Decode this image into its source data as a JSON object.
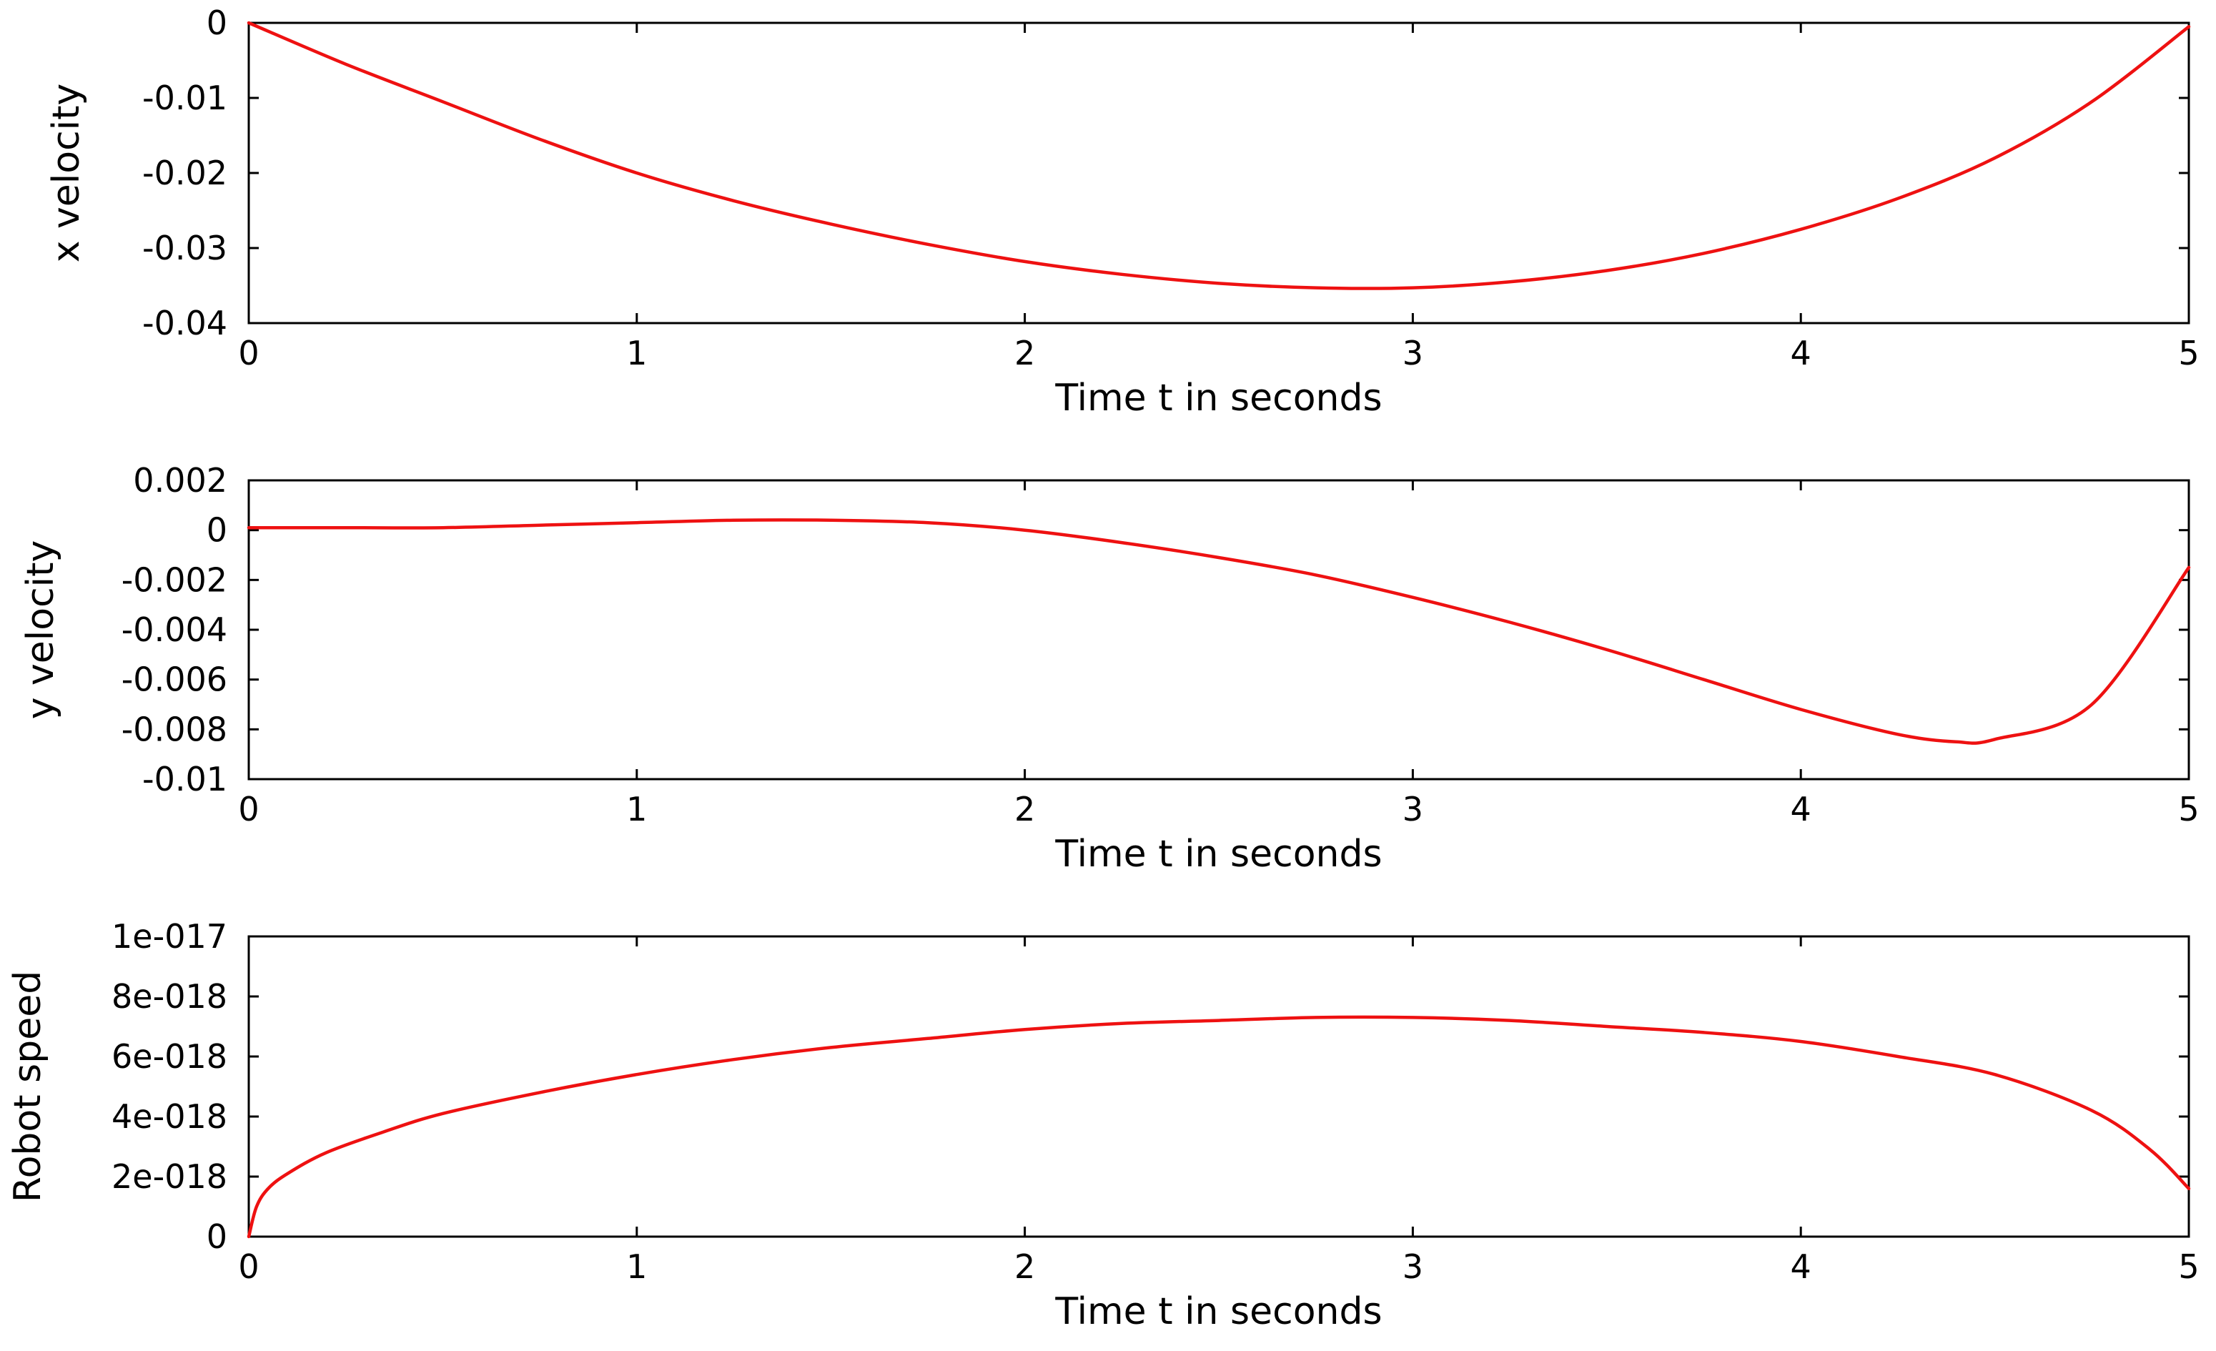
{
  "chart_data": [
    {
      "type": "line",
      "xlabel": "Time t in seconds",
      "ylabel": "x velocity",
      "xlim": [
        0,
        5
      ],
      "ylim": [
        -0.04,
        0
      ],
      "x_ticks": [
        0,
        1,
        2,
        3,
        4,
        5
      ],
      "x_tick_labels": [
        "0",
        "1",
        "2",
        "3",
        "4",
        "5"
      ],
      "y_ticks": [
        0,
        -0.01,
        -0.02,
        -0.03,
        -0.04
      ],
      "y_tick_labels": [
        "0",
        "-0.01",
        "-0.02",
        "-0.03",
        "-0.04"
      ],
      "grid": false,
      "series": [
        {
          "color": "#ee1111",
          "x": [
            0,
            0.25,
            0.5,
            0.75,
            1.0,
            1.25,
            1.5,
            1.75,
            2.0,
            2.25,
            2.5,
            2.75,
            3.0,
            3.25,
            3.5,
            3.75,
            4.0,
            4.25,
            4.5,
            4.75,
            5.0
          ],
          "y": [
            0,
            -0.0055,
            -0.0105,
            -0.0155,
            -0.02,
            -0.0237,
            -0.0268,
            -0.0295,
            -0.0318,
            -0.0335,
            -0.0347,
            -0.0353,
            -0.0353,
            -0.0345,
            -0.033,
            -0.0307,
            -0.0275,
            -0.0234,
            -0.018,
            -0.0105,
            -0.0005
          ]
        }
      ]
    },
    {
      "type": "line",
      "xlabel": "Time t in seconds",
      "ylabel": "y velocity",
      "xlim": [
        0,
        5
      ],
      "ylim": [
        -0.01,
        0.002
      ],
      "x_ticks": [
        0,
        1,
        2,
        3,
        4,
        5
      ],
      "x_tick_labels": [
        "0",
        "1",
        "2",
        "3",
        "4",
        "5"
      ],
      "y_ticks": [
        0.002,
        0,
        -0.002,
        -0.004,
        -0.006,
        -0.008,
        -0.01
      ],
      "y_tick_labels": [
        "0.002",
        "0",
        "-0.002",
        "-0.004",
        "-0.006",
        "-0.008",
        "-0.01"
      ],
      "grid": false,
      "series": [
        {
          "color": "#ee1111",
          "x": [
            0,
            0.25,
            0.5,
            0.75,
            1.0,
            1.25,
            1.5,
            1.75,
            2.0,
            2.25,
            2.5,
            2.75,
            3.0,
            3.25,
            3.5,
            3.75,
            4.0,
            4.25,
            4.4,
            4.5,
            4.75,
            5.0
          ],
          "y": [
            0.0001,
            0.0001,
            0.0001,
            0.0002,
            0.0003,
            0.0004,
            0.0004,
            0.0003,
            0.0,
            -0.0005,
            -0.0011,
            -0.0018,
            -0.0027,
            -0.0037,
            -0.0048,
            -0.006,
            -0.0072,
            -0.0082,
            -0.0085,
            -0.0084,
            -0.007,
            -0.0015
          ]
        }
      ]
    },
    {
      "type": "line",
      "xlabel": "Time t in seconds",
      "ylabel": "Robot speed",
      "xlim": [
        0,
        5
      ],
      "ylim": [
        0,
        1e-17
      ],
      "x_ticks": [
        0,
        1,
        2,
        3,
        4,
        5
      ],
      "x_tick_labels": [
        "0",
        "1",
        "2",
        "3",
        "4",
        "5"
      ],
      "y_ticks": [
        0,
        2e-18,
        4e-18,
        6e-18,
        8e-18,
        1e-17
      ],
      "y_tick_labels": [
        "0",
        "2e-018",
        "4e-018",
        "6e-018",
        "8e-018",
        "1e-017"
      ],
      "grid": false,
      "series": [
        {
          "color": "#ee1111",
          "x": [
            0,
            0.02,
            0.05,
            0.1,
            0.2,
            0.35,
            0.5,
            0.75,
            1.0,
            1.25,
            1.5,
            1.75,
            2.0,
            2.25,
            2.5,
            2.75,
            3.0,
            3.25,
            3.5,
            3.75,
            4.0,
            4.25,
            4.5,
            4.75,
            4.9,
            5.0
          ],
          "y": [
            0,
            1e-18,
            1.6e-18,
            2.1e-18,
            2.8e-18,
            3.5e-18,
            4.1e-18,
            4.8e-18,
            5.4e-18,
            5.9e-18,
            6.3e-18,
            6.6e-18,
            6.9e-18,
            7.1e-18,
            7.2e-18,
            7.3e-18,
            7.3e-18,
            7.2e-18,
            7e-18,
            6.8e-18,
            6.5e-18,
            6e-18,
            5.4e-18,
            4.2e-18,
            2.9e-18,
            1.6e-18
          ]
        }
      ]
    }
  ]
}
